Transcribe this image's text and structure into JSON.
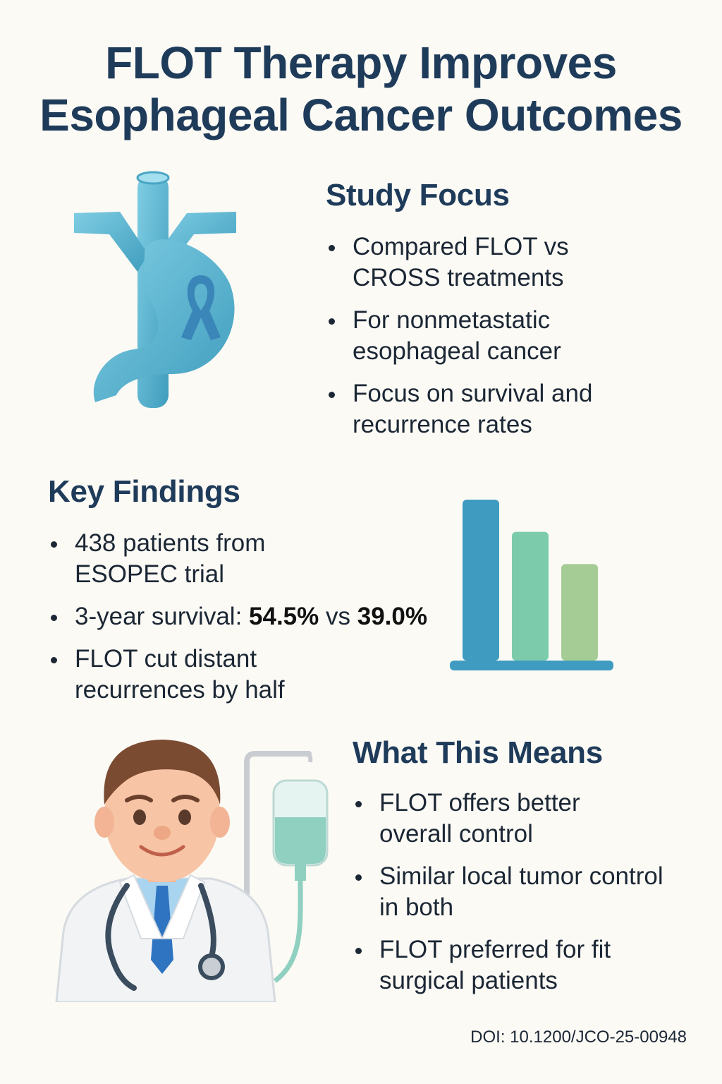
{
  "title": {
    "line1": "FLOT Therapy Improves",
    "line2": "Esophageal Cancer Outcomes"
  },
  "study_focus": {
    "heading": "Study Focus",
    "bullets": [
      {
        "line1": "Compared FLOT vs",
        "line2": "CROSS treatments"
      },
      {
        "line1": "For nonmetastatic",
        "line2": "esophageal cancer"
      },
      {
        "line1": "Focus on survival and",
        "line2": "recurrence rates"
      }
    ]
  },
  "key_findings": {
    "heading": "Key Findings",
    "bullet1": {
      "line1": "438 patients from",
      "line2": "ESOPEC trial"
    },
    "bullet2": {
      "prefix": "3-year survival: ",
      "value_a": "54.5%",
      "mid": " vs ",
      "value_b": "39.0%"
    },
    "bullet3": {
      "line1": "FLOT cut distant",
      "line2": "recurrences by half"
    }
  },
  "what_this_means": {
    "heading": "What This Means",
    "bullets": [
      {
        "line1": "FLOT offers better",
        "line2": "overall control"
      },
      {
        "line1": "Similar local tumor control",
        "line2": "in both"
      },
      {
        "line1": "FLOT preferred for fit",
        "line2": "surgical patients"
      }
    ]
  },
  "doi": "DOI: 10.1200/JCO-25-00948",
  "icons": {
    "illustration_top": "stomach-esophagus-ribbon-icon",
    "illustration_middle": "bar-chart-icon",
    "illustration_bottom": "doctor-iv-drip-icon"
  },
  "colors": {
    "heading": "#1f3b5a",
    "organ": "#5ab3cf",
    "ribbon": "#3a86b8",
    "bar1": "#3f9cc0",
    "bar2": "#7cccac",
    "bar3": "#a6cc96",
    "background": "#fbfaf5"
  },
  "chart_data": {
    "type": "bar",
    "categories": [
      "",
      "",
      ""
    ],
    "values": [
      1.0,
      0.8,
      0.6
    ]
  }
}
